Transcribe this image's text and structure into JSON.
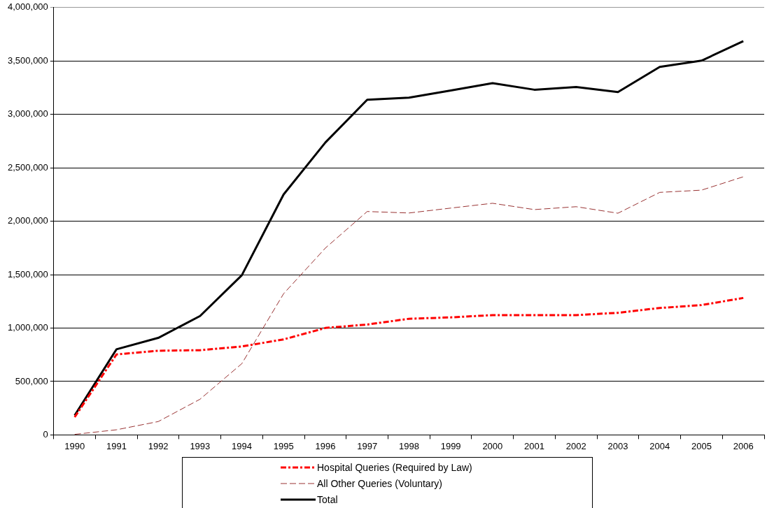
{
  "chart_data": {
    "type": "line",
    "categories": [
      "1990",
      "1991",
      "1992",
      "1993",
      "1994",
      "1995",
      "1996",
      "1997",
      "1998",
      "1999",
      "2000",
      "2001",
      "2002",
      "2003",
      "2004",
      "2005",
      "2006"
    ],
    "series": [
      {
        "name": "Hospital Queries (Required by Law)",
        "color": "#ff0000",
        "line_style": "dashed",
        "values": [
          166000,
          753000,
          788000,
          793000,
          828000,
          894000,
          1001000,
          1033000,
          1087000,
          1100000,
          1121000,
          1121000,
          1121000,
          1143000,
          1188000,
          1215000,
          1282000
        ]
      },
      {
        "name": "All Other Queries (Voluntary)",
        "color": "#993333",
        "line_style": "dashed",
        "values": [
          5000,
          48000,
          125000,
          334000,
          667000,
          1322000,
          1749000,
          2091000,
          2077000,
          2123000,
          2168000,
          2109000,
          2136000,
          2075000,
          2270000,
          2291000,
          2416000
        ]
      },
      {
        "name": "Total",
        "color": "#000000",
        "line_style": "solid",
        "values": [
          182000,
          801000,
          908000,
          1113000,
          1495000,
          2251000,
          2737000,
          3137000,
          3156000,
          3223000,
          3292000,
          3231000,
          3257000,
          3209000,
          3444000,
          3503000,
          3685000
        ]
      }
    ],
    "ylim": [
      0,
      4000000
    ],
    "yticks": [
      {
        "value": 0,
        "label": "0"
      },
      {
        "value": 500000,
        "label": "500,000"
      },
      {
        "value": 1000000,
        "label": "1,000,000"
      },
      {
        "value": 1500000,
        "label": "1,500,000"
      },
      {
        "value": 2000000,
        "label": "2,000,000"
      },
      {
        "value": 2500000,
        "label": "2,500,000"
      },
      {
        "value": 3000000,
        "label": "3,000,000"
      },
      {
        "value": 3500000,
        "label": "3,500,000"
      },
      {
        "value": 4000000,
        "label": "4,000,000"
      }
    ],
    "grid": "y",
    "legend": "bottom",
    "marker": "none"
  }
}
